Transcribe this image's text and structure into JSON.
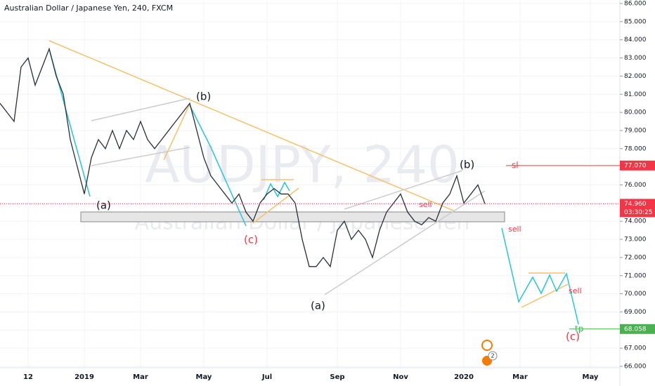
{
  "chart_data": {
    "type": "line",
    "title": "Australian Dollar / Japanese Yen, 240, FXCM",
    "watermark": [
      "AUDJPY, 240",
      "Australian Dollar / Japanese Yen"
    ],
    "color": "#2a2e39",
    "categories": [
      null,
      null,
      null,
      null,
      "12",
      null,
      null,
      null,
      null,
      null,
      null,
      null,
      "2019",
      null,
      null,
      null,
      null,
      null,
      null,
      null,
      "Mar",
      null,
      null,
      null,
      null,
      null,
      null,
      null,
      null,
      "May",
      null,
      null,
      null,
      null,
      null,
      null,
      null,
      null,
      "Jul",
      null,
      null,
      null,
      null,
      null,
      null,
      null,
      null,
      null,
      "Sep",
      null,
      null,
      null,
      null,
      null,
      null,
      null,
      null,
      "Nov",
      null,
      null,
      null,
      null,
      null,
      null,
      null,
      null,
      "2020",
      null,
      null,
      null,
      null,
      null,
      null,
      null,
      "Mar",
      null,
      null,
      null,
      null,
      null,
      null,
      null,
      null,
      null,
      "May",
      null,
      null,
      null
    ],
    "values": [
      80.5,
      80,
      79.5,
      82.5,
      83,
      81.5,
      82.5,
      83.5,
      82,
      81,
      78.5,
      77,
      75.5,
      77.5,
      78.5,
      78,
      79,
      78,
      79,
      78.5,
      79.5,
      78.5,
      78,
      78.5,
      79,
      79.5,
      80,
      80.5,
      79,
      77.5,
      76.5,
      76,
      75.5,
      75,
      75.5,
      74.5,
      74,
      75,
      75.5,
      75.8,
      75.5,
      75.5,
      75,
      73,
      71.5,
      71.5,
      72,
      71.5,
      73.5,
      74,
      73,
      73.5,
      73,
      72,
      73.5,
      74.5,
      75,
      75.5,
      74.5,
      74,
      73.8,
      74.2,
      74,
      75,
      75.5,
      76.5,
      75,
      75.5,
      76,
      74.96,
      null,
      null,
      null,
      null,
      null,
      null,
      null,
      null,
      null,
      null,
      null,
      null,
      null,
      null,
      null,
      null,
      null,
      null
    ],
    "ylim": [
      66,
      86
    ],
    "yticks": [
      {
        "value": 66,
        "label": "66.000"
      },
      {
        "value": 67,
        "label": "67.000"
      },
      {
        "value": 68,
        "label": "68.000"
      },
      {
        "value": 69,
        "label": "69.000"
      },
      {
        "value": 70,
        "label": "70.000"
      },
      {
        "value": 71,
        "label": "71.000"
      },
      {
        "value": 72,
        "label": "72.000"
      },
      {
        "value": 73,
        "label": "73.000"
      },
      {
        "value": 74,
        "label": "74.000"
      },
      {
        "value": 75,
        "label": "75.000"
      },
      {
        "value": 76,
        "label": "76.000"
      },
      {
        "value": 77,
        "label": "77.000"
      },
      {
        "value": 78,
        "label": "78.000"
      },
      {
        "value": 79,
        "label": "79.000"
      },
      {
        "value": 80,
        "label": "80.000"
      },
      {
        "value": 81,
        "label": "81.000"
      },
      {
        "value": 82,
        "label": "82.000"
      },
      {
        "value": 83,
        "label": "83.000"
      },
      {
        "value": 84,
        "label": "84.000"
      },
      {
        "value": 85,
        "label": "85.000"
      },
      {
        "value": 86,
        "label": "86.000"
      }
    ],
    "grid": true,
    "price_lines": [
      {
        "label": "sl",
        "value": 77.07,
        "value_label": "77.070",
        "color": "#f23645"
      },
      {
        "label": "tp",
        "value": 68.058,
        "value_label": "68.058",
        "color": "#4caf50"
      }
    ],
    "last_price": {
      "value": 74.96,
      "value_label": "74.960",
      "countdown": "03:30:25",
      "color": "#f23645"
    },
    "annotations": [
      "(a)",
      "(b)",
      "(c)",
      "(a)",
      "(b)",
      "(c)",
      "sell",
      "sell",
      "sell"
    ],
    "badge": "2"
  }
}
